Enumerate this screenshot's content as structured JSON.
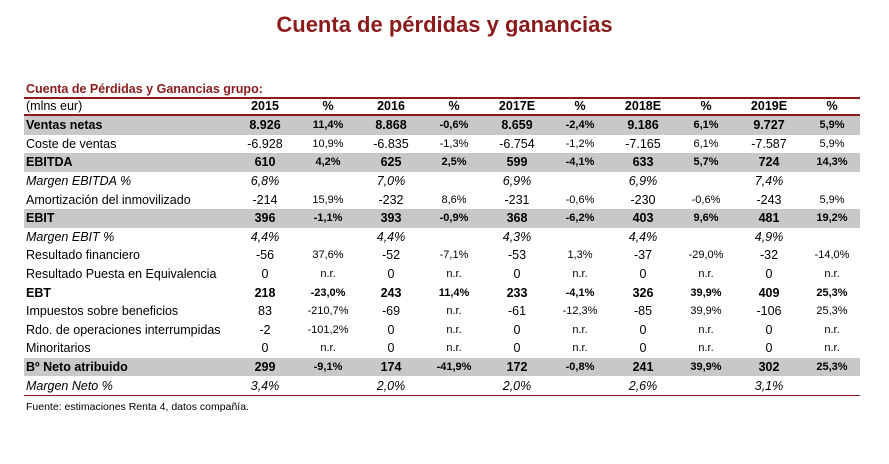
{
  "title": "Cuenta de pérdidas y ganancias",
  "subtitle": "Cuenta de Pérdidas y Ganancias grupo:",
  "units": "(mlns eur)",
  "columns": [
    "2015",
    "%",
    "2016",
    "%",
    "2017E",
    "%",
    "2018E",
    "%",
    "2019E",
    "%"
  ],
  "rows": [
    {
      "label": "Ventas netas",
      "style": "bold",
      "cells": [
        "8.926",
        "11,4%",
        "8.868",
        "-0,6%",
        "8.659",
        "-2,4%",
        "9.186",
        "6,1%",
        "9.727",
        "5,9%"
      ]
    },
    {
      "label": "Coste de ventas",
      "style": "indent",
      "cells": [
        "-6.928",
        "10,9%",
        "-6.835",
        "-1,3%",
        "-6.754",
        "-1,2%",
        "-7.165",
        "6,1%",
        "-7.587",
        "5,9%"
      ]
    },
    {
      "label": "EBITDA",
      "style": "bold",
      "cells": [
        "610",
        "4,2%",
        "625",
        "2,5%",
        "599",
        "-4,1%",
        "633",
        "5,7%",
        "724",
        "14,3%"
      ]
    },
    {
      "label": "Margen EBITDA %",
      "style": "italic",
      "cells": [
        "6,8%",
        "",
        "7,0%",
        "",
        "6,9%",
        "",
        "6,9%",
        "",
        "7,4%",
        ""
      ]
    },
    {
      "label": "Amortización del inmovilizado",
      "style": "indent",
      "cells": [
        "-214",
        "15,9%",
        "-232",
        "8,6%",
        "-231",
        "-0,6%",
        "-230",
        "-0,6%",
        "-243",
        "5,9%"
      ]
    },
    {
      "label": "EBIT",
      "style": "bold",
      "cells": [
        "396",
        "-1,1%",
        "393",
        "-0,9%",
        "368",
        "-6,2%",
        "403",
        "9,6%",
        "481",
        "19,2%"
      ]
    },
    {
      "label": "Margen EBIT %",
      "style": "italic",
      "cells": [
        "4,4%",
        "",
        "4,4%",
        "",
        "4,3%",
        "",
        "4,4%",
        "",
        "4,9%",
        ""
      ]
    },
    {
      "label": "Resultado financiero",
      "style": "indent",
      "cells": [
        "-56",
        "37,6%",
        "-52",
        "-7,1%",
        "-53",
        "1,3%",
        "-37",
        "-29,0%",
        "-32",
        "-14,0%"
      ]
    },
    {
      "label": "Resultado Puesta en Equivalencia",
      "style": "indent",
      "cells": [
        "0",
        "n.r.",
        "0",
        "n.r.",
        "0",
        "n.r.",
        "0",
        "n.r.",
        "0",
        "n.r."
      ]
    },
    {
      "label": "EBT",
      "style": "boldtext",
      "cells": [
        "218",
        "-23,0%",
        "243",
        "11,4%",
        "233",
        "-4,1%",
        "326",
        "39,9%",
        "409",
        "25,3%"
      ]
    },
    {
      "label": "Impuestos sobre beneficios",
      "style": "indent",
      "cells": [
        "83",
        "-210,7%",
        "-69",
        "n.r.",
        "-61",
        "-12,3%",
        "-85",
        "39,9%",
        "-106",
        "25,3%"
      ]
    },
    {
      "label": "Rdo. de operaciones interrumpidas",
      "style": "indent",
      "cells": [
        "-2",
        "-101,2%",
        "0",
        "n.r.",
        "0",
        "n.r.",
        "0",
        "n.r.",
        "0",
        "n.r."
      ]
    },
    {
      "label": "Minoritarios",
      "style": "indent",
      "cells": [
        "0",
        "n.r.",
        "0",
        "n.r.",
        "0",
        "n.r.",
        "0",
        "n.r.",
        "0",
        "n.r."
      ]
    },
    {
      "label": "Bº Neto atribuido",
      "style": "bold",
      "cells": [
        "299",
        "-9,1%",
        "174",
        "-41,9%",
        "172",
        "-0,8%",
        "241",
        "39,9%",
        "302",
        "25,3%"
      ]
    },
    {
      "label": "Margen Neto %",
      "style": "italic-last",
      "cells": [
        "3,4%",
        "",
        "2,0%",
        "",
        "2,0%",
        "",
        "2,6%",
        "",
        "3,1%",
        ""
      ]
    }
  ],
  "source": "Fuente: estimaciones Renta 4, datos compañía.",
  "colors": {
    "accent": "#8b1a1a",
    "band": "#c8c8c8"
  }
}
